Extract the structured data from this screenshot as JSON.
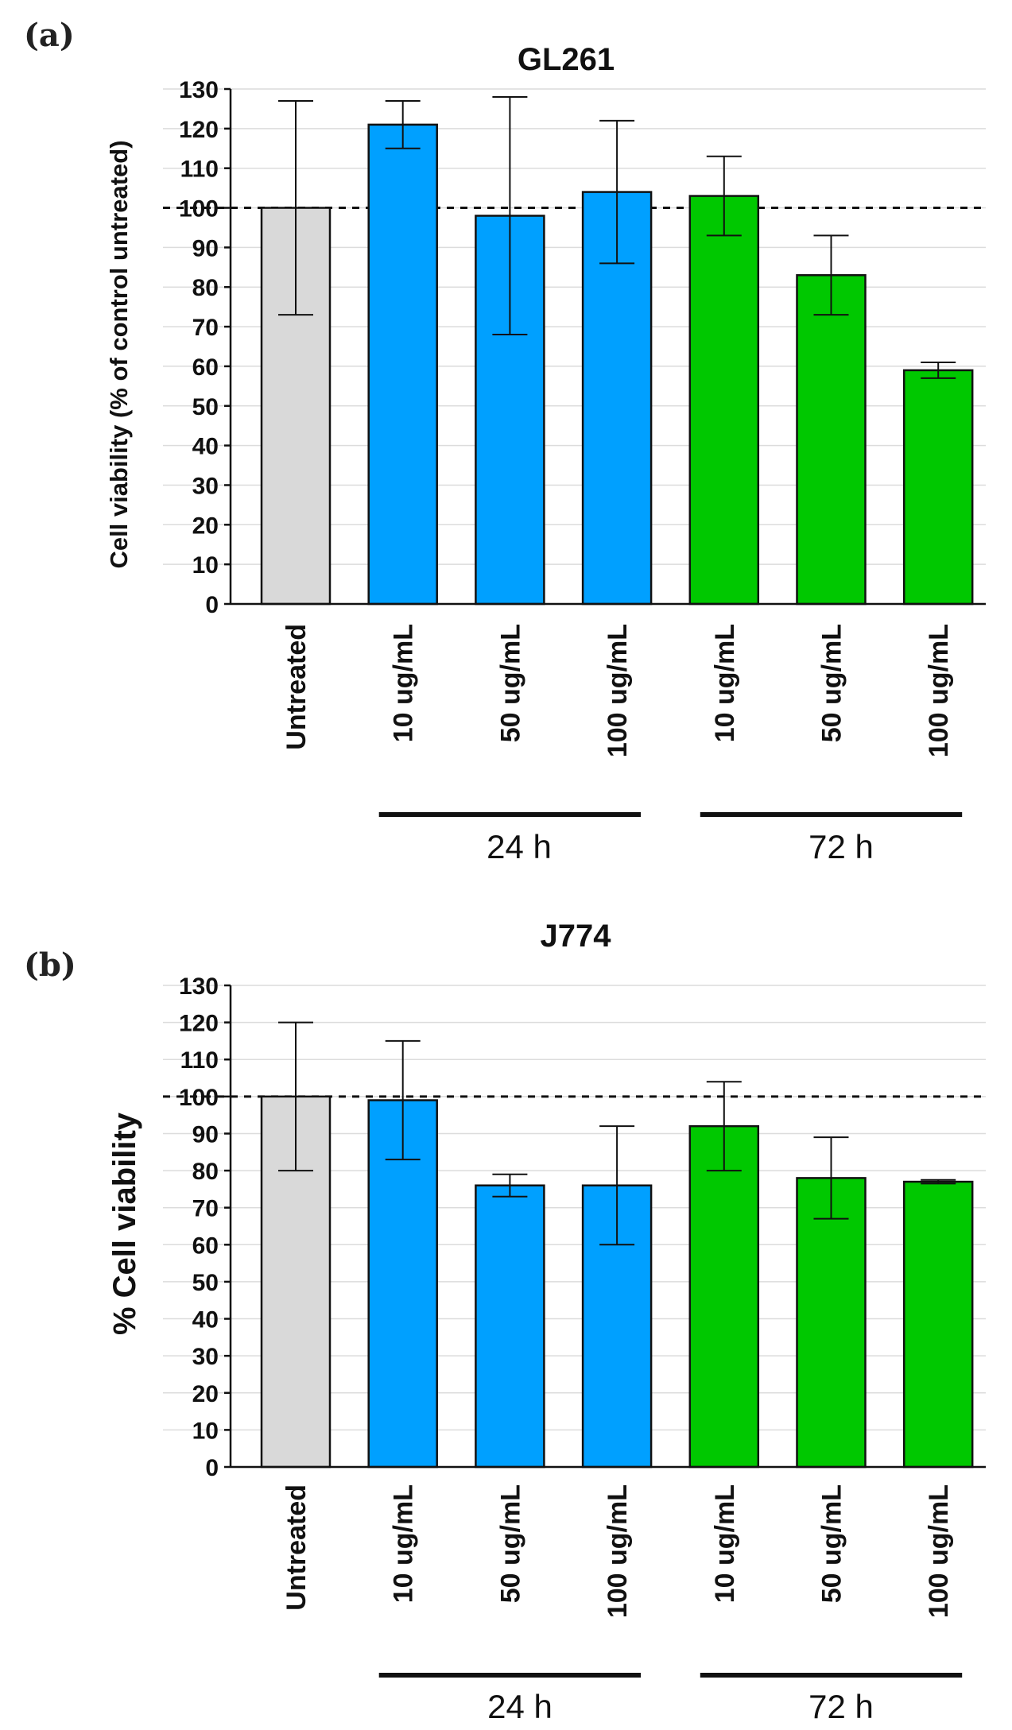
{
  "chart_data": [
    {
      "panel": "(a)",
      "type": "bar",
      "title": "GL261",
      "ylabel": "Cell viability (% of control untreated)",
      "xlabel": "",
      "categories": [
        "Untreated",
        "10 ug/mL",
        "50 ug/mL",
        "100 ug/mL",
        "10 ug/mL",
        "50 ug/mL",
        "100 ug/mL"
      ],
      "values": [
        100,
        121,
        98,
        104,
        103,
        83,
        59
      ],
      "errors": [
        27,
        6,
        30,
        18,
        10,
        10,
        2
      ],
      "colors": [
        "#d9d9d9",
        "#00a0ff",
        "#00a0ff",
        "#00a0ff",
        "#00c800",
        "#00c800",
        "#00c800"
      ],
      "ylim": [
        0,
        130
      ],
      "yticks": [
        0,
        10,
        20,
        30,
        40,
        50,
        60,
        70,
        80,
        90,
        100,
        110,
        120,
        130
      ],
      "reference_line": 100,
      "grid": true,
      "groups": [
        {
          "label": "24 h",
          "start": 1,
          "end": 3
        },
        {
          "label": "72 h",
          "start": 4,
          "end": 6
        }
      ]
    },
    {
      "panel": "(b)",
      "type": "bar",
      "title": "J774",
      "ylabel": "% Cell viability",
      "xlabel": "",
      "categories": [
        "Untreated",
        "10 ug/mL",
        "50 ug/mL",
        "100 ug/mL",
        "10 ug/mL",
        "50 ug/mL",
        "100 ug/mL"
      ],
      "values": [
        100,
        99,
        76,
        76,
        92,
        78,
        77
      ],
      "errors": [
        20,
        16,
        3,
        16,
        12,
        11,
        0.5
      ],
      "colors": [
        "#d9d9d9",
        "#00a0ff",
        "#00a0ff",
        "#00a0ff",
        "#00c800",
        "#00c800",
        "#00c800"
      ],
      "ylim": [
        0,
        130
      ],
      "yticks": [
        0,
        10,
        20,
        30,
        40,
        50,
        60,
        70,
        80,
        90,
        100,
        110,
        120,
        130
      ],
      "reference_line": 100,
      "grid": true,
      "groups": [
        {
          "label": "24 h",
          "start": 1,
          "end": 3
        },
        {
          "label": "72 h",
          "start": 4,
          "end": 6
        }
      ]
    }
  ]
}
